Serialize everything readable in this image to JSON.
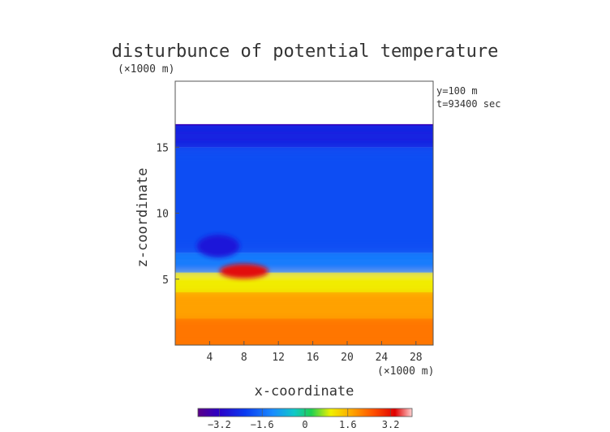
{
  "chart_data": {
    "type": "heatmap",
    "title": "disturbunce of potential temperature",
    "subtitle": "(×1000 m)",
    "xlabel": "x-coordinate",
    "ylabel": "z-coordinate",
    "x_unit": "(×1000 m)",
    "annotations": [
      "y=100 m",
      "t=93400 sec"
    ],
    "xlim": [
      0,
      30
    ],
    "ylim": [
      0,
      20
    ],
    "x_ticks": [
      4,
      8,
      12,
      16,
      20,
      24,
      28
    ],
    "x_tick_labels": [
      "4",
      "8",
      "12",
      "16",
      "20",
      "24",
      "28"
    ],
    "y_ticks": [
      5,
      10,
      15
    ],
    "y_tick_labels": [
      "5",
      "10",
      "15"
    ],
    "colorbar": {
      "range": [
        -4,
        4
      ],
      "ticks": [
        -3.2,
        -1.6,
        0,
        1.6,
        3.2
      ],
      "tick_labels": [
        "−3.2",
        "−1.6",
        "0",
        "1.6",
        "3.2"
      ]
    },
    "field_top_z": 16.7,
    "bands": [
      {
        "z_from": 0,
        "z_to": 2,
        "value": 2.2
      },
      {
        "z_from": 2,
        "z_to": 4,
        "value": 1.8
      },
      {
        "z_from": 4,
        "z_to": 5.5,
        "value": 1.0
      },
      {
        "z_from": 5.5,
        "z_to": 7,
        "value": -1.4
      },
      {
        "z_from": 7,
        "z_to": 15,
        "value": -2.0
      },
      {
        "z_from": 15,
        "z_to": 16.7,
        "value": -2.6
      }
    ],
    "features": [
      {
        "label": "warm anomaly",
        "x": 8,
        "z": 5.6,
        "value": 3.4
      },
      {
        "label": "cold tongue",
        "x": 5,
        "z": 7.5,
        "value": -2.8
      }
    ]
  }
}
